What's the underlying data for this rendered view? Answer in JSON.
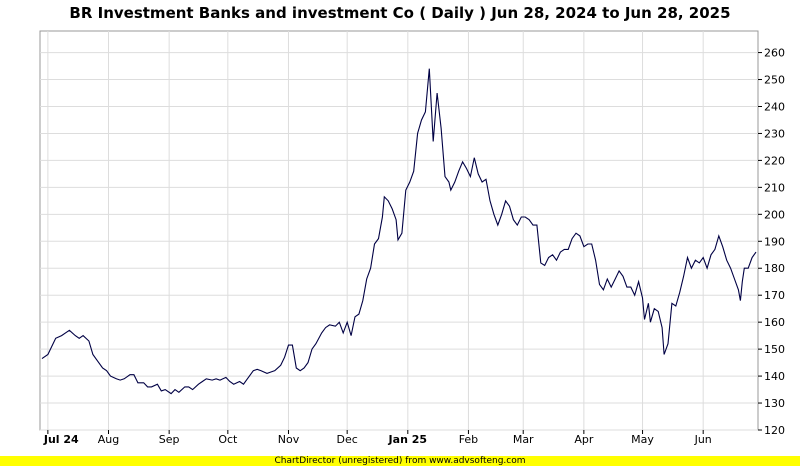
{
  "footer": "ChartDirector (unregistered) from www.advsofteng.com",
  "chart_data": {
    "type": "line",
    "title": "BR Investment Banks and investment Co ( Daily ) Jun 28, 2024 to Jun 28, 2025",
    "x_range": [
      "2024-06-28",
      "2025-06-28"
    ],
    "ylim": [
      120,
      268
    ],
    "y_axis_position": "right",
    "grid": true,
    "line_color": "#000044",
    "y_ticks": [
      120,
      130,
      140,
      150,
      160,
      170,
      180,
      190,
      200,
      210,
      220,
      230,
      240,
      250,
      260
    ],
    "x_ticks": [
      {
        "label": "Jul 24",
        "date": "2024-07-01",
        "bold": true
      },
      {
        "label": "Aug",
        "date": "2024-08-01",
        "bold": false
      },
      {
        "label": "Sep",
        "date": "2024-09-01",
        "bold": false
      },
      {
        "label": "Oct",
        "date": "2024-10-01",
        "bold": false
      },
      {
        "label": "Nov",
        "date": "2024-11-01",
        "bold": false
      },
      {
        "label": "Dec",
        "date": "2024-12-01",
        "bold": false
      },
      {
        "label": "Jan 25",
        "date": "2025-01-01",
        "bold": true
      },
      {
        "label": "Feb",
        "date": "2025-02-01",
        "bold": false
      },
      {
        "label": "Mar",
        "date": "2025-03-01",
        "bold": false
      },
      {
        "label": "Apr",
        "date": "2025-04-01",
        "bold": false
      },
      {
        "label": "May",
        "date": "2025-05-01",
        "bold": false
      },
      {
        "label": "Jun",
        "date": "2025-06-01",
        "bold": false
      }
    ],
    "series": [
      {
        "values": [
          [
            "2024-06-28",
            146.5
          ],
          [
            "2024-07-01",
            148
          ],
          [
            "2024-07-03",
            151
          ],
          [
            "2024-07-05",
            154
          ],
          [
            "2024-07-08",
            155
          ],
          [
            "2024-07-10",
            156
          ],
          [
            "2024-07-12",
            157
          ],
          [
            "2024-07-15",
            155
          ],
          [
            "2024-07-17",
            154
          ],
          [
            "2024-07-19",
            155
          ],
          [
            "2024-07-22",
            153
          ],
          [
            "2024-07-24",
            148
          ],
          [
            "2024-07-26",
            146
          ],
          [
            "2024-07-29",
            143
          ],
          [
            "2024-07-31",
            142
          ],
          [
            "2024-08-02",
            140
          ],
          [
            "2024-08-05",
            139
          ],
          [
            "2024-08-07",
            138.5
          ],
          [
            "2024-08-09",
            139
          ],
          [
            "2024-08-12",
            140.5
          ],
          [
            "2024-08-14",
            140.5
          ],
          [
            "2024-08-16",
            137.5
          ],
          [
            "2024-08-19",
            137.5
          ],
          [
            "2024-08-21",
            136
          ],
          [
            "2024-08-23",
            136
          ],
          [
            "2024-08-26",
            137
          ],
          [
            "2024-08-28",
            134.5
          ],
          [
            "2024-08-30",
            135
          ],
          [
            "2024-09-02",
            133.5
          ],
          [
            "2024-09-04",
            135
          ],
          [
            "2024-09-06",
            134
          ],
          [
            "2024-09-09",
            136
          ],
          [
            "2024-09-11",
            136
          ],
          [
            "2024-09-13",
            135
          ],
          [
            "2024-09-16",
            137
          ],
          [
            "2024-09-18",
            138
          ],
          [
            "2024-09-20",
            139
          ],
          [
            "2024-09-23",
            138.5
          ],
          [
            "2024-09-25",
            139
          ],
          [
            "2024-09-27",
            138.5
          ],
          [
            "2024-09-30",
            139.5
          ],
          [
            "2024-10-02",
            138
          ],
          [
            "2024-10-04",
            137
          ],
          [
            "2024-10-07",
            138
          ],
          [
            "2024-10-09",
            137
          ],
          [
            "2024-10-11",
            139
          ],
          [
            "2024-10-14",
            142
          ],
          [
            "2024-10-16",
            142.5
          ],
          [
            "2024-10-18",
            142
          ],
          [
            "2024-10-21",
            141
          ],
          [
            "2024-10-23",
            141.5
          ],
          [
            "2024-10-25",
            142
          ],
          [
            "2024-10-28",
            144
          ],
          [
            "2024-10-30",
            147
          ],
          [
            "2024-11-01",
            151.5
          ],
          [
            "2024-11-03",
            151.5
          ],
          [
            "2024-11-05",
            143
          ],
          [
            "2024-11-07",
            142
          ],
          [
            "2024-11-09",
            143
          ],
          [
            "2024-11-11",
            145
          ],
          [
            "2024-11-13",
            150
          ],
          [
            "2024-11-15",
            152
          ],
          [
            "2024-11-18",
            156
          ],
          [
            "2024-11-20",
            158
          ],
          [
            "2024-11-22",
            159
          ],
          [
            "2024-11-25",
            158.5
          ],
          [
            "2024-11-27",
            160
          ],
          [
            "2024-11-29",
            156
          ],
          [
            "2024-12-01",
            160
          ],
          [
            "2024-12-03",
            155
          ],
          [
            "2024-12-05",
            162
          ],
          [
            "2024-12-07",
            163
          ],
          [
            "2024-12-09",
            168
          ],
          [
            "2024-12-11",
            176
          ],
          [
            "2024-12-13",
            180
          ],
          [
            "2024-12-15",
            189
          ],
          [
            "2024-12-17",
            191
          ],
          [
            "2024-12-19",
            199
          ],
          [
            "2024-12-20",
            206.5
          ],
          [
            "2024-12-22",
            205
          ],
          [
            "2024-12-24",
            202
          ],
          [
            "2024-12-26",
            198
          ],
          [
            "2024-12-27",
            190.5
          ],
          [
            "2024-12-29",
            193
          ],
          [
            "2024-12-31",
            209
          ],
          [
            "2025-01-02",
            212
          ],
          [
            "2025-01-04",
            216
          ],
          [
            "2025-01-06",
            230
          ],
          [
            "2025-01-08",
            235
          ],
          [
            "2025-01-10",
            238
          ],
          [
            "2025-01-12",
            254
          ],
          [
            "2025-01-14",
            227
          ],
          [
            "2025-01-16",
            245
          ],
          [
            "2025-01-18",
            232
          ],
          [
            "2025-01-20",
            214
          ],
          [
            "2025-01-22",
            212
          ],
          [
            "2025-01-23",
            209
          ],
          [
            "2025-01-25",
            212
          ],
          [
            "2025-01-27",
            216
          ],
          [
            "2025-01-29",
            219.5
          ],
          [
            "2025-01-31",
            217
          ],
          [
            "2025-02-02",
            214
          ],
          [
            "2025-02-04",
            221
          ],
          [
            "2025-02-06",
            215
          ],
          [
            "2025-02-08",
            212
          ],
          [
            "2025-02-10",
            213
          ],
          [
            "2025-02-12",
            205
          ],
          [
            "2025-02-14",
            200
          ],
          [
            "2025-02-16",
            196
          ],
          [
            "2025-02-18",
            200
          ],
          [
            "2025-02-20",
            205
          ],
          [
            "2025-02-22",
            203
          ],
          [
            "2025-02-24",
            198
          ],
          [
            "2025-02-26",
            196
          ],
          [
            "2025-02-28",
            199
          ],
          [
            "2025-03-02",
            199
          ],
          [
            "2025-03-04",
            198
          ],
          [
            "2025-03-06",
            196
          ],
          [
            "2025-03-08",
            196
          ],
          [
            "2025-03-10",
            182
          ],
          [
            "2025-03-12",
            181
          ],
          [
            "2025-03-14",
            184
          ],
          [
            "2025-03-16",
            185
          ],
          [
            "2025-03-18",
            183
          ],
          [
            "2025-03-20",
            186
          ],
          [
            "2025-03-22",
            187
          ],
          [
            "2025-03-24",
            187
          ],
          [
            "2025-03-26",
            191
          ],
          [
            "2025-03-28",
            193
          ],
          [
            "2025-03-30",
            192
          ],
          [
            "2025-04-01",
            188
          ],
          [
            "2025-04-03",
            189
          ],
          [
            "2025-04-05",
            189
          ],
          [
            "2025-04-07",
            183
          ],
          [
            "2025-04-09",
            174
          ],
          [
            "2025-04-11",
            172
          ],
          [
            "2025-04-13",
            176
          ],
          [
            "2025-04-15",
            173
          ],
          [
            "2025-04-17",
            176
          ],
          [
            "2025-04-19",
            179
          ],
          [
            "2025-04-21",
            177
          ],
          [
            "2025-04-23",
            173
          ],
          [
            "2025-04-25",
            173
          ],
          [
            "2025-04-27",
            170
          ],
          [
            "2025-04-29",
            175
          ],
          [
            "2025-05-01",
            169
          ],
          [
            "2025-05-02",
            161
          ],
          [
            "2025-05-04",
            167
          ],
          [
            "2025-05-05",
            160
          ],
          [
            "2025-05-07",
            165
          ],
          [
            "2025-05-09",
            164
          ],
          [
            "2025-05-11",
            158
          ],
          [
            "2025-05-12",
            148
          ],
          [
            "2025-05-14",
            152
          ],
          [
            "2025-05-16",
            167
          ],
          [
            "2025-05-18",
            166
          ],
          [
            "2025-05-20",
            171
          ],
          [
            "2025-05-22",
            177
          ],
          [
            "2025-05-24",
            184
          ],
          [
            "2025-05-26",
            180
          ],
          [
            "2025-05-28",
            183
          ],
          [
            "2025-05-30",
            182
          ],
          [
            "2025-06-01",
            184
          ],
          [
            "2025-06-03",
            180
          ],
          [
            "2025-06-05",
            185
          ],
          [
            "2025-06-07",
            187
          ],
          [
            "2025-06-09",
            192
          ],
          [
            "2025-06-11",
            188
          ],
          [
            "2025-06-13",
            183
          ],
          [
            "2025-06-15",
            180
          ],
          [
            "2025-06-17",
            176
          ],
          [
            "2025-06-19",
            172
          ],
          [
            "2025-06-20",
            168
          ],
          [
            "2025-06-21",
            175
          ],
          [
            "2025-06-22",
            180
          ],
          [
            "2025-06-24",
            180
          ],
          [
            "2025-06-26",
            184
          ],
          [
            "2025-06-28",
            186
          ]
        ]
      }
    ]
  }
}
